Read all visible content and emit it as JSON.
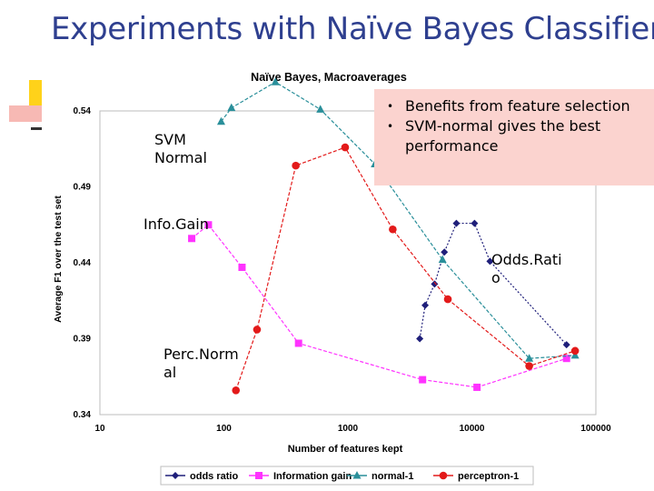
{
  "slide": {
    "title": "Experiments with Naïve Bayes Classifier",
    "bullets": [
      "Benefits from feature selection",
      "SVM-normal gives the best performance"
    ],
    "series_labels": {
      "svm": [
        "SVM",
        "Normal"
      ],
      "infogain": [
        "Info.Gain"
      ],
      "oddsratio": [
        "Odds.Rati",
        "o"
      ],
      "perc": [
        "Perc.Norm",
        "al"
      ]
    }
  },
  "chart_data": {
    "type": "line",
    "title": "Naïve Bayes, Macroaverages",
    "xlabel": "Number of features kept",
    "ylabel": "Average F1 over the test set",
    "xscale": "log",
    "xlim": [
      10,
      100000
    ],
    "ylim": [
      0.34,
      0.54
    ],
    "xticks": [
      "10",
      "100",
      "1000",
      "10000",
      "100000"
    ],
    "yticks": [
      "0.34",
      "0.39",
      "0.44",
      "0.49",
      "0.54"
    ],
    "legend_position": "bottom",
    "series": [
      {
        "name": "odds ratio",
        "color": "#1f1f7a",
        "marker": "diamond",
        "x": [
          3800,
          4200,
          5000,
          6000,
          7500,
          10500,
          14000,
          58000
        ],
        "y": [
          0.39,
          0.412,
          0.426,
          0.447,
          0.466,
          0.466,
          0.441,
          0.386
        ]
      },
      {
        "name": "Information gain",
        "color": "#ff33ff",
        "marker": "square",
        "x": [
          55,
          75,
          140,
          400,
          4000,
          11000,
          58000
        ],
        "y": [
          0.456,
          0.465,
          0.437,
          0.387,
          0.363,
          0.358,
          0.377
        ]
      },
      {
        "name": "normal-1",
        "color": "#2a8f9a",
        "marker": "triangle",
        "x": [
          95,
          115,
          260,
          600,
          1650,
          5800,
          29000,
          68000
        ],
        "y": [
          0.533,
          0.542,
          0.559,
          0.541,
          0.505,
          0.442,
          0.377,
          0.379
        ]
      },
      {
        "name": "perceptron-1",
        "color": "#e31a1a",
        "marker": "circle",
        "x": [
          125,
          185,
          380,
          950,
          2300,
          6400,
          29000,
          68000
        ],
        "y": [
          0.356,
          0.396,
          0.504,
          0.516,
          0.462,
          0.416,
          0.372,
          0.382
        ]
      }
    ]
  }
}
